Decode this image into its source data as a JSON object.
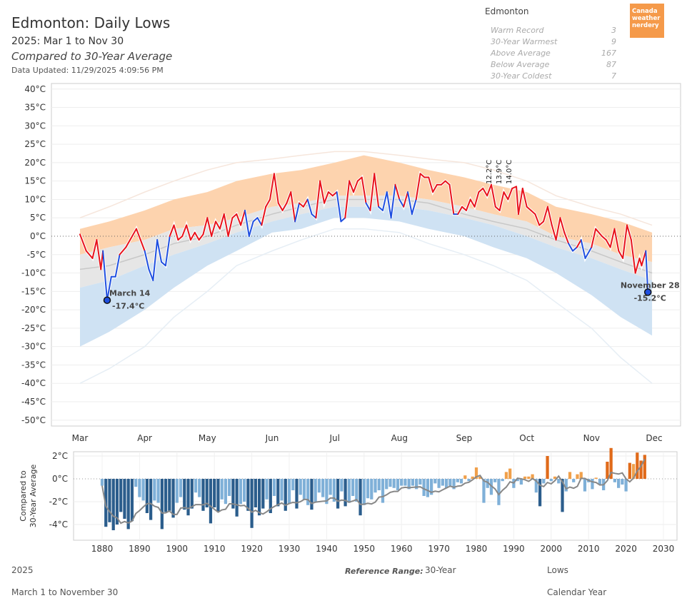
{
  "header": {
    "title": "Edmonton: Daily Lows",
    "subtitle": "2025: Mar 1 to Nov 30",
    "comparison": "Compared to 30-Year Average",
    "updated": "Data Updated: 11/29/2025 4:09:56 PM"
  },
  "summary": {
    "city": "Edmonton",
    "rows": [
      {
        "label": "Warm Record",
        "value": "3"
      },
      {
        "label": "30-Year Warmest",
        "value": "9"
      },
      {
        "label": "Above Average",
        "value": "167"
      },
      {
        "label": "Below Average",
        "value": "87"
      },
      {
        "label": "30-Year Coldest",
        "value": "7"
      }
    ]
  },
  "logo": {
    "text": "Canada weather nerdery",
    "color": "#f59a4a"
  },
  "footer": {
    "year": "2025",
    "range": "March 1 to November 30",
    "ref_label": "Reference Range:",
    "ref_value": "30-Year",
    "measure": "Lows",
    "period": "Calendar Year"
  },
  "colors": {
    "above": "#e8121b",
    "below": "#1f4fe0",
    "warm_band": "#fdd3ae",
    "cold_band": "#cfe2f3",
    "normal_band": "#e6e6e6",
    "pos_bar": "#f0a04b",
    "pos_bar_strong": "#e06a1a",
    "neg_bar": "#7fb0d8",
    "neg_bar_strong": "#2b5d8c"
  },
  "chart_data": [
    {
      "type": "line",
      "title": "Edmonton: Daily Lows",
      "ylim": [
        -50,
        40
      ],
      "yticks": [
        "40°C",
        "35°C",
        "30°C",
        "25°C",
        "20°C",
        "15°C",
        "10°C",
        "5°C",
        "0°C",
        "-5°C",
        "-10°C",
        "-15°C",
        "-20°C",
        "-25°C",
        "-30°C",
        "-35°C",
        "-40°C",
        "-45°C",
        "-50°C"
      ],
      "ytick_values": [
        40,
        35,
        30,
        25,
        20,
        15,
        10,
        5,
        0,
        -5,
        -10,
        -15,
        -20,
        -25,
        -30,
        -35,
        -40,
        -45,
        -50
      ],
      "xticks": [
        "Mar",
        "Apr",
        "May",
        "Jun",
        "Jul",
        "Aug",
        "Sep",
        "Oct",
        "Nov",
        "Dec"
      ],
      "xtick_dates": [
        "03-01",
        "04-01",
        "05-01",
        "06-01",
        "07-01",
        "08-01",
        "09-01",
        "10-01",
        "11-01",
        "12-01"
      ],
      "grid": true,
      "daily_lows": [
        [
          "03-01",
          0.5
        ],
        [
          "03-04",
          -4
        ],
        [
          "03-07",
          -6
        ],
        [
          "03-09",
          -1
        ],
        [
          "03-11",
          -9
        ],
        [
          "03-12",
          -4
        ],
        [
          "03-14",
          -17.4
        ],
        [
          "03-16",
          -11
        ],
        [
          "03-18",
          -11
        ],
        [
          "03-20",
          -5
        ],
        [
          "03-23",
          -3
        ],
        [
          "03-26",
          0
        ],
        [
          "03-28",
          2
        ],
        [
          "03-30",
          -1
        ],
        [
          "04-01",
          -4
        ],
        [
          "04-03",
          -9
        ],
        [
          "04-05",
          -12
        ],
        [
          "04-07",
          -1
        ],
        [
          "04-09",
          -7
        ],
        [
          "04-11",
          -8
        ],
        [
          "04-13",
          0
        ],
        [
          "04-15",
          3
        ],
        [
          "04-17",
          -1
        ],
        [
          "04-19",
          0
        ],
        [
          "04-21",
          3
        ],
        [
          "04-23",
          -1
        ],
        [
          "04-25",
          1
        ],
        [
          "04-27",
          -1
        ],
        [
          "04-29",
          0.5
        ],
        [
          "05-01",
          5
        ],
        [
          "05-03",
          0
        ],
        [
          "05-05",
          4
        ],
        [
          "05-07",
          2
        ],
        [
          "05-09",
          6
        ],
        [
          "05-11",
          0
        ],
        [
          "05-13",
          5
        ],
        [
          "05-15",
          6
        ],
        [
          "05-17",
          3
        ],
        [
          "05-19",
          7
        ],
        [
          "05-21",
          0
        ],
        [
          "05-23",
          4
        ],
        [
          "05-25",
          5
        ],
        [
          "05-27",
          3
        ],
        [
          "05-29",
          8
        ],
        [
          "05-31",
          10
        ],
        [
          "06-02",
          17
        ],
        [
          "06-04",
          9
        ],
        [
          "06-06",
          7
        ],
        [
          "06-08",
          9
        ],
        [
          "06-10",
          12
        ],
        [
          "06-12",
          4
        ],
        [
          "06-14",
          9
        ],
        [
          "06-16",
          8
        ],
        [
          "06-18",
          10
        ],
        [
          "06-20",
          6
        ],
        [
          "06-22",
          5
        ],
        [
          "06-24",
          15
        ],
        [
          "06-26",
          9
        ],
        [
          "06-28",
          12
        ],
        [
          "06-30",
          11
        ],
        [
          "07-02",
          12
        ],
        [
          "07-04",
          4
        ],
        [
          "07-06",
          5
        ],
        [
          "07-08",
          15
        ],
        [
          "07-10",
          12
        ],
        [
          "07-12",
          15
        ],
        [
          "07-14",
          16
        ],
        [
          "07-16",
          9
        ],
        [
          "07-18",
          7
        ],
        [
          "07-20",
          17
        ],
        [
          "07-22",
          8
        ],
        [
          "07-24",
          7
        ],
        [
          "07-26",
          12
        ],
        [
          "07-28",
          5
        ],
        [
          "07-30",
          14
        ],
        [
          "08-01",
          10
        ],
        [
          "08-03",
          8
        ],
        [
          "08-05",
          12
        ],
        [
          "08-07",
          6
        ],
        [
          "08-09",
          10
        ],
        [
          "08-11",
          17
        ],
        [
          "08-13",
          16
        ],
        [
          "08-15",
          16
        ],
        [
          "08-17",
          12
        ],
        [
          "08-19",
          14
        ],
        [
          "08-21",
          14
        ],
        [
          "08-23",
          15
        ],
        [
          "08-25",
          14
        ],
        [
          "08-27",
          6
        ],
        [
          "08-29",
          6
        ],
        [
          "08-31",
          8
        ],
        [
          "09-02",
          7
        ],
        [
          "09-04",
          10
        ],
        [
          "09-06",
          8
        ],
        [
          "09-08",
          12
        ],
        [
          "09-10",
          13
        ],
        [
          "09-12",
          11
        ],
        [
          "09-14",
          14
        ],
        [
          "09-16",
          8
        ],
        [
          "09-18",
          7
        ],
        [
          "09-20",
          12
        ],
        [
          "09-22",
          10
        ],
        [
          "09-24",
          13
        ],
        [
          "09-26",
          13.5
        ],
        [
          "09-27",
          6
        ],
        [
          "09-29",
          13
        ],
        [
          "10-01",
          8
        ],
        [
          "10-03",
          7
        ],
        [
          "10-05",
          6
        ],
        [
          "10-07",
          3
        ],
        [
          "10-09",
          4
        ],
        [
          "10-11",
          8
        ],
        [
          "10-13",
          3
        ],
        [
          "10-15",
          -1
        ],
        [
          "10-17",
          5
        ],
        [
          "10-19",
          1
        ],
        [
          "10-21",
          -2
        ],
        [
          "10-23",
          -4
        ],
        [
          "10-25",
          -3
        ],
        [
          "10-27",
          -1
        ],
        [
          "10-29",
          -6
        ],
        [
          "11-01",
          -3
        ],
        [
          "11-03",
          2
        ],
        [
          "11-06",
          0
        ],
        [
          "11-08",
          -1
        ],
        [
          "11-10",
          -3
        ],
        [
          "11-12",
          2
        ],
        [
          "11-14",
          -4
        ],
        [
          "11-16",
          -6
        ],
        [
          "11-18",
          3
        ],
        [
          "11-20",
          -1
        ],
        [
          "11-22",
          -10
        ],
        [
          "11-24",
          -6
        ],
        [
          "11-25",
          -8
        ],
        [
          "11-27",
          -4
        ],
        [
          "11-28",
          -15.2
        ]
      ],
      "bands": {
        "dates": [
          "03-01",
          "03-15",
          "04-01",
          "04-15",
          "05-01",
          "05-15",
          "06-01",
          "06-15",
          "07-01",
          "07-15",
          "08-01",
          "08-15",
          "09-01",
          "09-15",
          "10-01",
          "10-15",
          "11-01",
          "11-15",
          "11-30"
        ],
        "record_high": [
          5,
          8,
          12,
          15,
          18,
          20,
          21,
          22,
          23,
          23,
          22,
          21,
          20,
          18,
          15,
          11,
          8,
          6,
          3
        ],
        "warm_30yr": [
          2,
          4,
          7,
          10,
          12,
          15,
          17,
          18,
          20,
          22,
          20,
          18,
          16,
          14,
          12,
          8,
          6,
          4,
          1
        ],
        "normal_upper": [
          -5,
          -3,
          -1,
          2,
          3,
          5,
          8,
          9,
          11,
          11,
          11,
          10,
          8,
          6,
          4,
          0,
          -2,
          -5,
          -7
        ],
        "average": [
          -9,
          -8,
          -5,
          -2,
          0,
          3,
          6,
          8,
          10,
          10,
          10,
          9,
          6,
          4,
          2,
          -1,
          -4,
          -7,
          -10
        ],
        "normal_lower": [
          -14,
          -12,
          -8,
          -5,
          -2,
          1,
          4,
          6,
          8,
          8,
          8,
          7,
          5,
          3,
          0,
          -3,
          -6,
          -9,
          -12
        ],
        "cold_30yr": [
          -30,
          -26,
          -20,
          -14,
          -8,
          -4,
          1,
          2,
          5,
          5,
          4,
          2,
          0,
          -3,
          -6,
          -10,
          -16,
          -22,
          -27
        ],
        "record_low": [
          -40,
          -36,
          -30,
          -22,
          -15,
          -8,
          -4,
          -1,
          2,
          2,
          1,
          -2,
          -5,
          -8,
          -12,
          -18,
          -25,
          -33,
          -40
        ]
      },
      "annotations": [
        {
          "date": "03-14",
          "label": "March 14",
          "value_label": "-17.4°C",
          "value": -17.4
        },
        {
          "date": "11-28",
          "label": "November 28",
          "value_label": "-15.2°C",
          "value": -15.2
        }
      ],
      "rotated_labels": [
        {
          "date": "09-14",
          "text": "12.2°C"
        },
        {
          "date": "09-16",
          "text": "13.9°C"
        },
        {
          "date": "09-17",
          "text": "14.0°C"
        }
      ]
    },
    {
      "type": "bar",
      "ylabel": "Compared to 30-Year Average",
      "ylim": [
        -4.7,
        2.8
      ],
      "yticks": [
        "2°C",
        "0°C",
        "-2°C",
        "-4°C"
      ],
      "ytick_values": [
        2,
        0,
        -2,
        -4
      ],
      "xticks": [
        "1880",
        "1890",
        "1900",
        "1910",
        "1920",
        "1930",
        "1940",
        "1950",
        "1960",
        "1970",
        "1980",
        "1990",
        "2000",
        "2010",
        "2020",
        "2030"
      ],
      "x_start": 1880,
      "values": [
        -0.6,
        -4.2,
        -3.8,
        -4.5,
        -4,
        -2.9,
        -3.5,
        -4.4,
        -3.7,
        -0.7,
        -1.6,
        -1.9,
        -3,
        -3.6,
        -1.9,
        -2.1,
        -4.4,
        -2.9,
        -2.8,
        -3.4,
        -2.1,
        -1.6,
        -2.7,
        -3.2,
        -2.6,
        -1.2,
        -1.6,
        -2.8,
        -2.5,
        -3.9,
        -2.5,
        -2.9,
        -1.8,
        -2.2,
        -1.5,
        -2.6,
        -3.3,
        -2.2,
        -2.0,
        -2.8,
        -4.3,
        -2.5,
        -3.2,
        -2.6,
        -1.8,
        -3.0,
        -1.5,
        -2.4,
        -1.9,
        -2.8,
        -2.2,
        -1.0,
        -2.6,
        -1.4,
        -1.8,
        -2.3,
        -2.7,
        -2.0,
        -1.2,
        -1.6,
        -2.2,
        -1.4,
        -2.0,
        -2.6,
        -1.1,
        -2.4,
        -2.1,
        -1.5,
        -2.0,
        -3.2,
        -2.3,
        -1.7,
        -1.8,
        -1.2,
        -1.0,
        -2.1,
        -0.9,
        -0.7,
        -0.8,
        -1.0,
        -0.6,
        -0.6,
        -0.9,
        -0.6,
        -0.9,
        -0.5,
        -1.5,
        -1.6,
        -1.4,
        -0.4,
        -0.8,
        -0.6,
        -0.8,
        -0.6,
        -0.9,
        -0.3,
        -0.4,
        0.3,
        -0.2,
        0.2,
        1.0,
        0.2,
        -2.1,
        -0.8,
        -1.4,
        -0.3,
        -2.3,
        -0.2,
        0.6,
        0.9,
        -0.8,
        -0.2,
        -0.5,
        0.2,
        0.2,
        0.4,
        -1.2,
        -2.4,
        -0.4,
        2.0,
        -0.2,
        0.2,
        -0.4,
        -2.9,
        -1.1,
        0.6,
        -0.3,
        0.4,
        0.6,
        -1.1,
        -0.3,
        -0.9,
        0.1,
        -0.5,
        -1.0,
        1.5,
        2.7,
        -0.3,
        -0.8,
        -0.5,
        -1.1,
        1.4,
        1.3,
        2.3,
        1.6,
        2.1
      ],
      "trend_line": true
    }
  ]
}
